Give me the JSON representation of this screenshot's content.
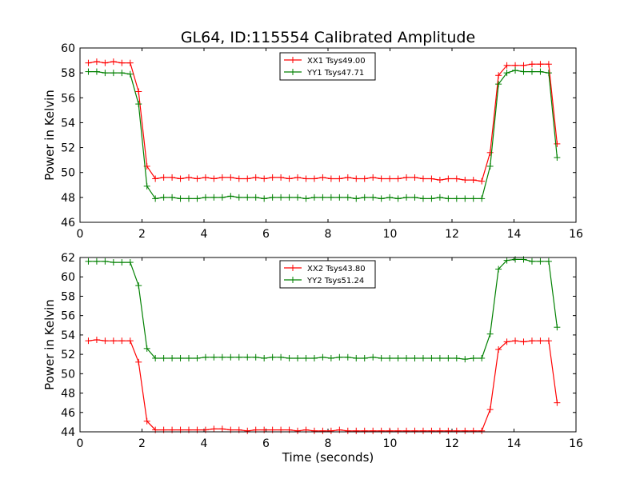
{
  "figure": {
    "title": "GL64, ID:115554 Calibrated Amplitude",
    "xlabel": "Time (seconds)"
  },
  "chart_data": [
    {
      "type": "line",
      "title": "GL64, ID:115554 Calibrated Amplitude",
      "xlabel": "",
      "ylabel": "Power in Kelvin",
      "xlim": [
        0,
        16
      ],
      "ylim": [
        46,
        60
      ],
      "xticks": [
        0,
        2,
        4,
        6,
        8,
        10,
        12,
        14,
        16
      ],
      "yticks": [
        46,
        48,
        50,
        52,
        54,
        56,
        58,
        60
      ],
      "grid": false,
      "legend_position": "top-center",
      "x": [
        0.27,
        0.54,
        0.81,
        1.08,
        1.35,
        1.62,
        1.89,
        2.16,
        2.43,
        2.7,
        2.97,
        3.24,
        3.51,
        3.78,
        4.05,
        4.32,
        4.59,
        4.86,
        5.13,
        5.4,
        5.67,
        5.94,
        6.21,
        6.48,
        6.75,
        7.02,
        7.29,
        7.56,
        7.83,
        8.1,
        8.37,
        8.64,
        8.91,
        9.18,
        9.45,
        9.72,
        9.99,
        10.26,
        10.53,
        10.8,
        11.07,
        11.34,
        11.61,
        11.88,
        12.15,
        12.42,
        12.69,
        12.96,
        13.23,
        13.5,
        13.77,
        14.04,
        14.31,
        14.58,
        14.85,
        15.12,
        15.39
      ],
      "series": [
        {
          "name": "XX1 Tsys49.00",
          "color": "#ff0000",
          "values": [
            58.8,
            58.9,
            58.8,
            58.9,
            58.8,
            58.8,
            56.5,
            50.5,
            49.5,
            49.6,
            49.6,
            49.5,
            49.6,
            49.5,
            49.6,
            49.5,
            49.6,
            49.6,
            49.5,
            49.5,
            49.6,
            49.5,
            49.6,
            49.6,
            49.5,
            49.6,
            49.5,
            49.5,
            49.6,
            49.5,
            49.5,
            49.6,
            49.5,
            49.5,
            49.6,
            49.5,
            49.5,
            49.5,
            49.6,
            49.6,
            49.5,
            49.5,
            49.4,
            49.5,
            49.5,
            49.4,
            49.4,
            49.3,
            51.6,
            57.8,
            58.6,
            58.6,
            58.6,
            58.7,
            58.7,
            58.7,
            52.3
          ]
        },
        {
          "name": "YY1 Tsys47.71",
          "color": "#008000",
          "values": [
            58.1,
            58.1,
            58.0,
            58.0,
            58.0,
            57.9,
            55.5,
            48.9,
            47.9,
            48.0,
            48.0,
            47.9,
            47.9,
            47.9,
            48.0,
            48.0,
            48.0,
            48.1,
            48.0,
            48.0,
            48.0,
            47.9,
            48.0,
            48.0,
            48.0,
            48.0,
            47.9,
            48.0,
            48.0,
            48.0,
            48.0,
            48.0,
            47.9,
            48.0,
            48.0,
            47.9,
            48.0,
            47.9,
            48.0,
            48.0,
            47.9,
            47.9,
            48.0,
            47.9,
            47.9,
            47.9,
            47.9,
            47.9,
            50.5,
            57.1,
            58.0,
            58.2,
            58.1,
            58.1,
            58.1,
            58.0,
            51.2
          ]
        }
      ]
    },
    {
      "type": "line",
      "title": "",
      "xlabel": "Time (seconds)",
      "ylabel": "Power in Kelvin",
      "xlim": [
        0,
        16
      ],
      "ylim": [
        44,
        62
      ],
      "xticks": [
        0,
        2,
        4,
        6,
        8,
        10,
        12,
        14,
        16
      ],
      "yticks": [
        44,
        46,
        48,
        50,
        52,
        54,
        56,
        58,
        60,
        62
      ],
      "grid": false,
      "legend_position": "top-center",
      "x": [
        0.27,
        0.54,
        0.81,
        1.08,
        1.35,
        1.62,
        1.89,
        2.16,
        2.43,
        2.7,
        2.97,
        3.24,
        3.51,
        3.78,
        4.05,
        4.32,
        4.59,
        4.86,
        5.13,
        5.4,
        5.67,
        5.94,
        6.21,
        6.48,
        6.75,
        7.02,
        7.29,
        7.56,
        7.83,
        8.1,
        8.37,
        8.64,
        8.91,
        9.18,
        9.45,
        9.72,
        9.99,
        10.26,
        10.53,
        10.8,
        11.07,
        11.34,
        11.61,
        11.88,
        12.15,
        12.42,
        12.69,
        12.96,
        13.23,
        13.5,
        13.77,
        14.04,
        14.31,
        14.58,
        14.85,
        15.12,
        15.39
      ],
      "series": [
        {
          "name": "XX2 Tsys43.80",
          "color": "#ff0000",
          "values": [
            53.4,
            53.5,
            53.4,
            53.4,
            53.4,
            53.4,
            51.2,
            45.1,
            44.2,
            44.2,
            44.2,
            44.2,
            44.2,
            44.2,
            44.2,
            44.3,
            44.3,
            44.2,
            44.2,
            44.1,
            44.2,
            44.2,
            44.2,
            44.2,
            44.2,
            44.1,
            44.2,
            44.1,
            44.1,
            44.1,
            44.2,
            44.1,
            44.1,
            44.1,
            44.1,
            44.1,
            44.1,
            44.1,
            44.1,
            44.1,
            44.1,
            44.1,
            44.1,
            44.1,
            44.1,
            44.1,
            44.1,
            44.1,
            46.3,
            52.5,
            53.3,
            53.4,
            53.3,
            53.4,
            53.4,
            53.4,
            47.0
          ]
        },
        {
          "name": "YY2 Tsys51.24",
          "color": "#008000",
          "values": [
            61.6,
            61.6,
            61.6,
            61.5,
            61.5,
            61.5,
            59.1,
            52.6,
            51.6,
            51.6,
            51.6,
            51.6,
            51.6,
            51.6,
            51.7,
            51.7,
            51.7,
            51.7,
            51.7,
            51.7,
            51.7,
            51.6,
            51.7,
            51.7,
            51.6,
            51.6,
            51.6,
            51.6,
            51.7,
            51.6,
            51.7,
            51.7,
            51.6,
            51.6,
            51.7,
            51.6,
            51.6,
            51.6,
            51.6,
            51.6,
            51.6,
            51.6,
            51.6,
            51.6,
            51.6,
            51.5,
            51.6,
            51.6,
            54.1,
            60.8,
            61.7,
            61.8,
            61.8,
            61.6,
            61.6,
            61.6,
            54.8
          ]
        }
      ]
    }
  ]
}
